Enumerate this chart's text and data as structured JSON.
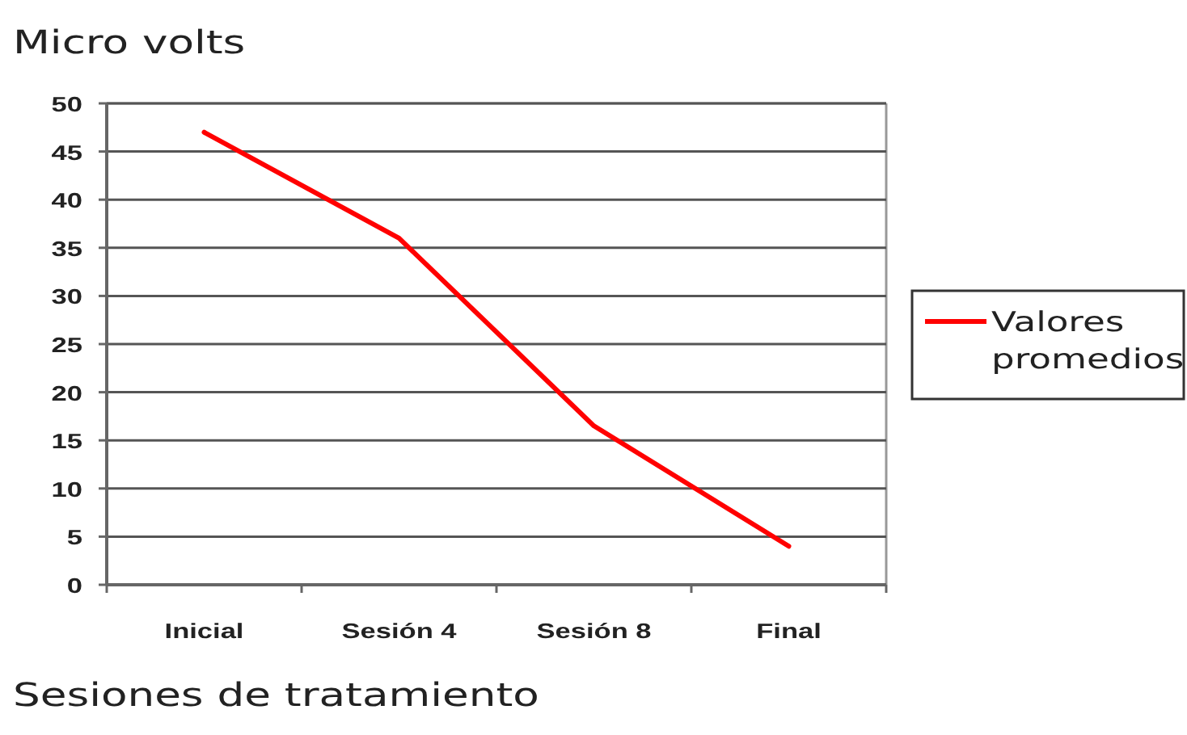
{
  "chart_data": {
    "type": "line",
    "ylabel": "Micro volts",
    "xlabel": "Sesiones de tratamiento",
    "categories": [
      "Inicial",
      "Sesión 4",
      "Sesión 8",
      "Final"
    ],
    "series": [
      {
        "name": "Valores promedios",
        "color": "#ff0000",
        "values": [
          47,
          36,
          16.5,
          4
        ]
      }
    ],
    "ylim": [
      0,
      50
    ],
    "yticks": [
      0,
      5,
      10,
      15,
      20,
      25,
      30,
      35,
      40,
      45,
      50
    ],
    "grid": "y",
    "legend": "right"
  }
}
